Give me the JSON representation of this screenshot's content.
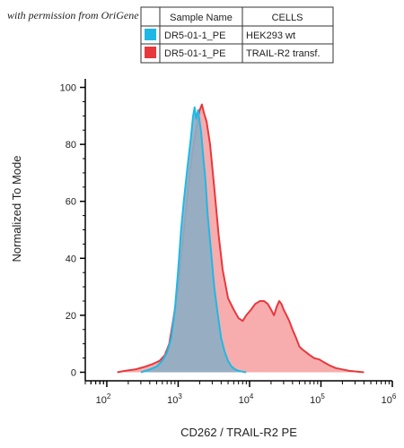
{
  "credit": "with permission from OriGene",
  "legend": {
    "headers": [
      "Sample Name",
      "CELLS"
    ],
    "rows": [
      {
        "sample": "DR5-01-1_PE",
        "cells": "HEK293 wt",
        "color": "#1fb8e6"
      },
      {
        "sample": "DR5-01-1_PE",
        "cells": "TRAIL-R2 transf.",
        "color": "#e8383d"
      }
    ]
  },
  "chart_data": {
    "type": "area",
    "title": "",
    "xlabel": "CD262 / TRAIL-R2 PE",
    "ylabel": "Normalized To Mode",
    "xscale": "log",
    "xlim": [
      50,
      1000000
    ],
    "ylim": [
      -3,
      103
    ],
    "x_ticks": [
      {
        "value": 100,
        "base": "10",
        "exp": "2"
      },
      {
        "value": 1000,
        "base": "10",
        "exp": "3"
      },
      {
        "value": 10000,
        "base": "10",
        "exp": "4"
      },
      {
        "value": 100000,
        "base": "10",
        "exp": "5"
      },
      {
        "value": 1000000,
        "base": "10",
        "exp": "6"
      }
    ],
    "y_ticks": [
      "0",
      "20",
      "40",
      "60",
      "80",
      "100"
    ],
    "series": [
      {
        "name": "TRAIL-R2 transf.",
        "fill": "#f7a9a9",
        "stroke": "#e8383d",
        "x": [
          140,
          180,
          250,
          350,
          450,
          550,
          650,
          750,
          850,
          1000,
          1150,
          1300,
          1450,
          1600,
          1700,
          1850,
          2000,
          2150,
          2300,
          2500,
          2800,
          3200,
          3700,
          4200,
          5000,
          6000,
          7000,
          8000,
          9000,
          10500,
          12000,
          14000,
          16000,
          18000,
          20000,
          22000,
          24000,
          26000,
          28000,
          30000,
          33000,
          36000,
          40000,
          45000,
          50000,
          55000,
          62000,
          70000,
          80000,
          95000,
          110000,
          130000,
          160000,
          200000,
          250000,
          320000,
          400000
        ],
        "y": [
          0,
          0.5,
          1,
          2,
          3,
          4,
          6,
          10,
          18,
          30,
          45,
          58,
          70,
          78,
          82,
          88,
          92,
          94,
          91,
          88,
          80,
          65,
          48,
          36,
          26,
          22,
          19,
          18,
          20,
          22,
          24,
          25,
          25,
          24,
          22,
          20,
          23,
          25,
          24,
          22,
          20,
          18,
          15,
          12,
          9,
          8,
          7,
          6,
          5,
          4.5,
          3.5,
          2.5,
          1.5,
          1,
          0.5,
          0.2,
          0
        ]
      },
      {
        "name": "HEK293 wt",
        "fill": "#8eaec3",
        "stroke": "#1fb8e6",
        "x": [
          300,
          400,
          500,
          600,
          700,
          800,
          900,
          1000,
          1100,
          1200,
          1350,
          1500,
          1620,
          1700,
          1780,
          1900,
          2000,
          2100,
          2200,
          2400,
          2600,
          2900,
          3200,
          3600,
          4000,
          4500,
          5000,
          5600,
          6300,
          7000,
          8000,
          9000
        ],
        "y": [
          0,
          1,
          2,
          4,
          7,
          12,
          22,
          36,
          50,
          60,
          72,
          82,
          90,
          93,
          89,
          92,
          88,
          84,
          78,
          68,
          55,
          42,
          30,
          20,
          12,
          7,
          4,
          2,
          1,
          0.5,
          0.2,
          0
        ]
      }
    ]
  }
}
